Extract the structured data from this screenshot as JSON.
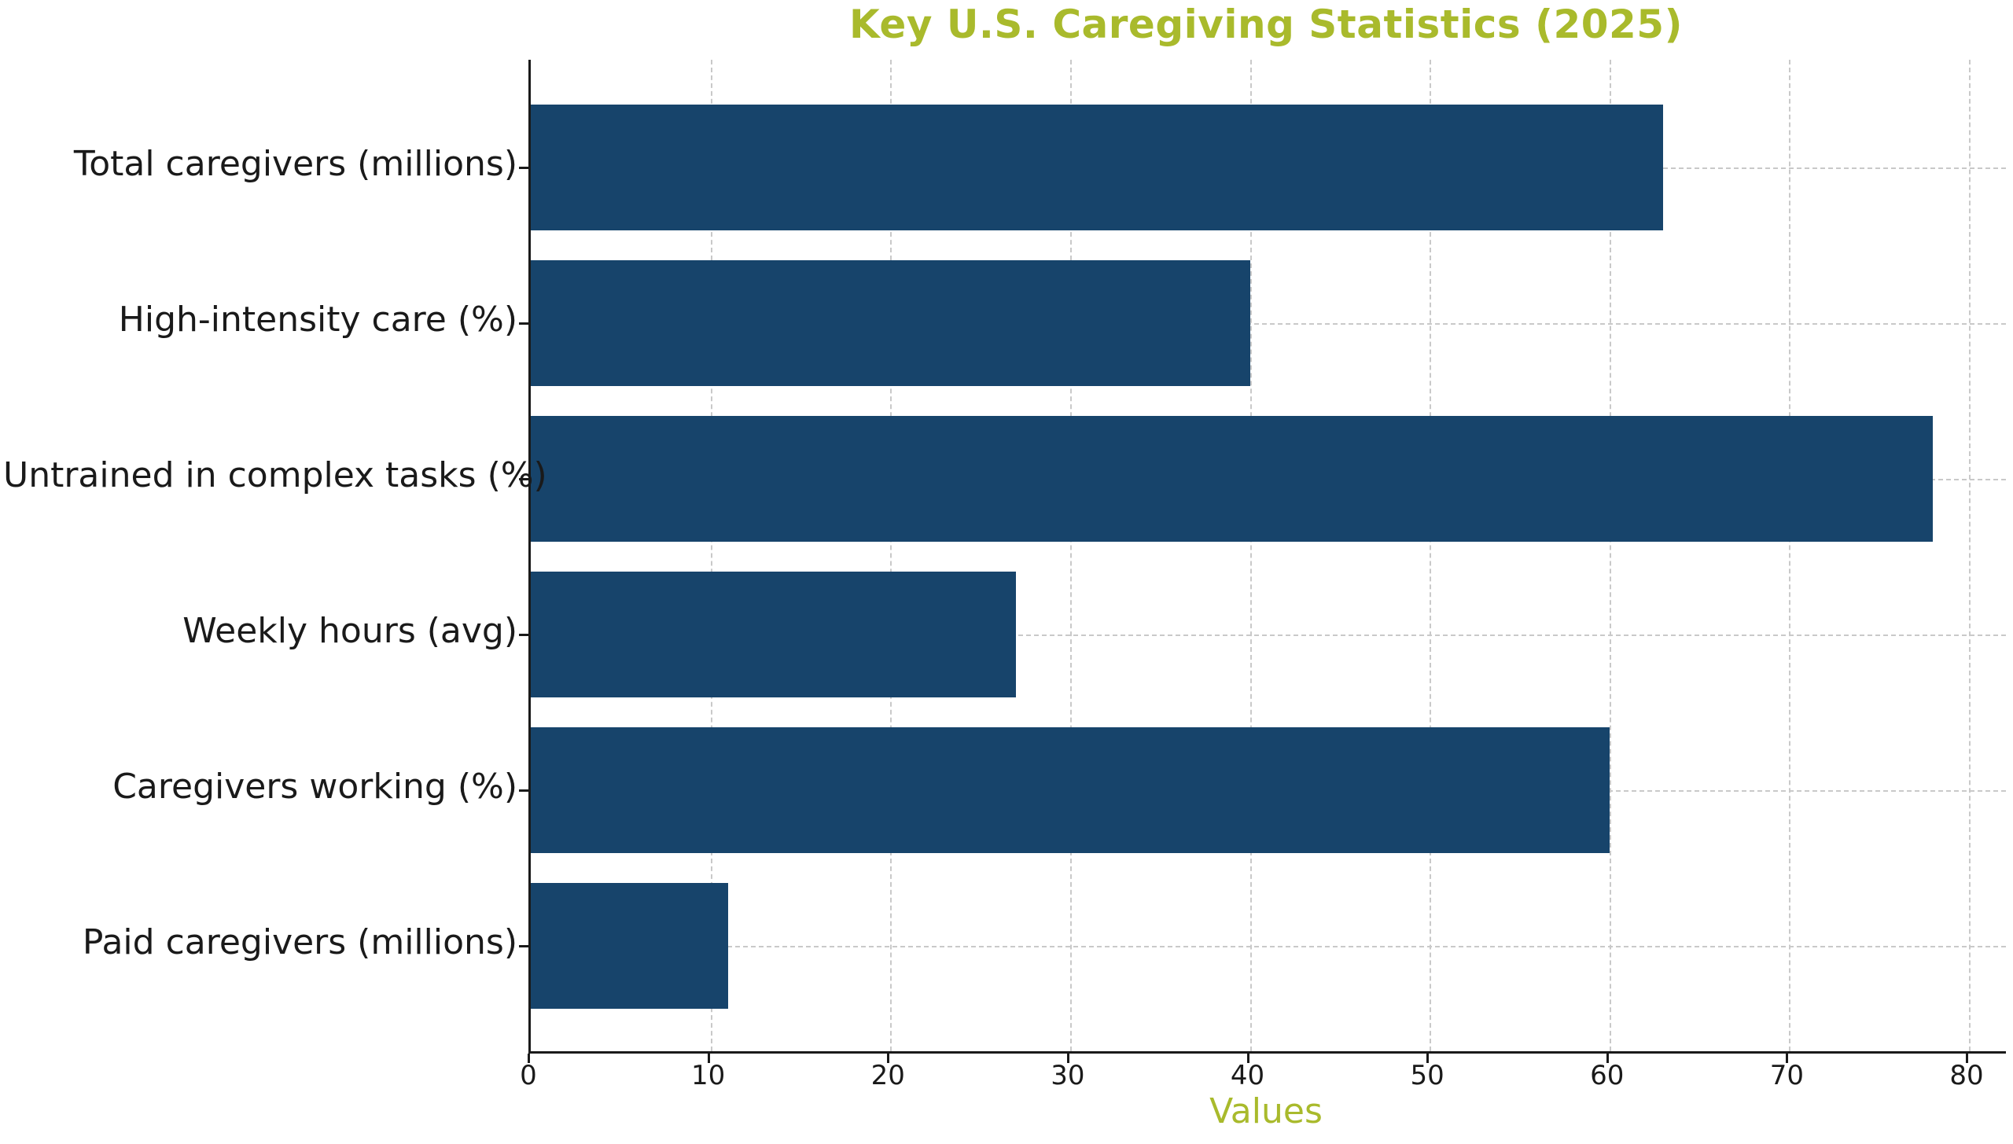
{
  "chart_data": {
    "type": "bar",
    "orientation": "horizontal",
    "title": "Key U.S. Caregiving Statistics (2025)",
    "xlabel": "Values",
    "categories": [
      "Total caregivers (millions)",
      "High-intensity care (%)",
      "Untrained in complex tasks (%)",
      "Weekly hours (avg)",
      "Caregivers working (%)",
      "Paid caregivers (millions)"
    ],
    "values": [
      63,
      40,
      78,
      27,
      60,
      11
    ],
    "xticks": [
      0,
      10,
      20,
      30,
      40,
      50,
      60,
      70,
      80
    ],
    "xlim": [
      0,
      82
    ],
    "grid": "both-dashed",
    "legend": "none",
    "colors": {
      "bar": "#17446b",
      "title": "#a9ba2c",
      "xlabel": "#a9ba2c",
      "grid": "#c9c9c9",
      "axis": "#1a1a1a",
      "tick_label": "#1a1a1a",
      "background": "#ffffff"
    }
  }
}
